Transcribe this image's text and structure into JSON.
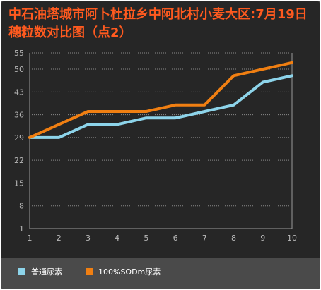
{
  "chart_data": {
    "type": "line",
    "title": "中石油塔城市阿卜杜拉乡中阿北村小麦大区:7月19日穗粒数对比图（点2）",
    "x": [
      1,
      2,
      3,
      4,
      5,
      6,
      7,
      8,
      9,
      10
    ],
    "yticks": [
      1,
      8,
      15,
      22,
      29,
      36,
      43,
      50,
      55
    ],
    "ylim": [
      1,
      55
    ],
    "grid": true,
    "legend_position": "bottom",
    "series": [
      {
        "name": "普通尿素",
        "color": "#8dd4ea",
        "values": [
          29,
          29,
          33,
          33,
          35,
          35,
          37,
          39,
          46,
          48
        ]
      },
      {
        "name": "100%SODm尿素",
        "color": "#f07f12",
        "values": [
          29,
          33,
          37,
          37,
          37,
          39,
          39,
          48,
          50,
          52
        ]
      }
    ]
  }
}
